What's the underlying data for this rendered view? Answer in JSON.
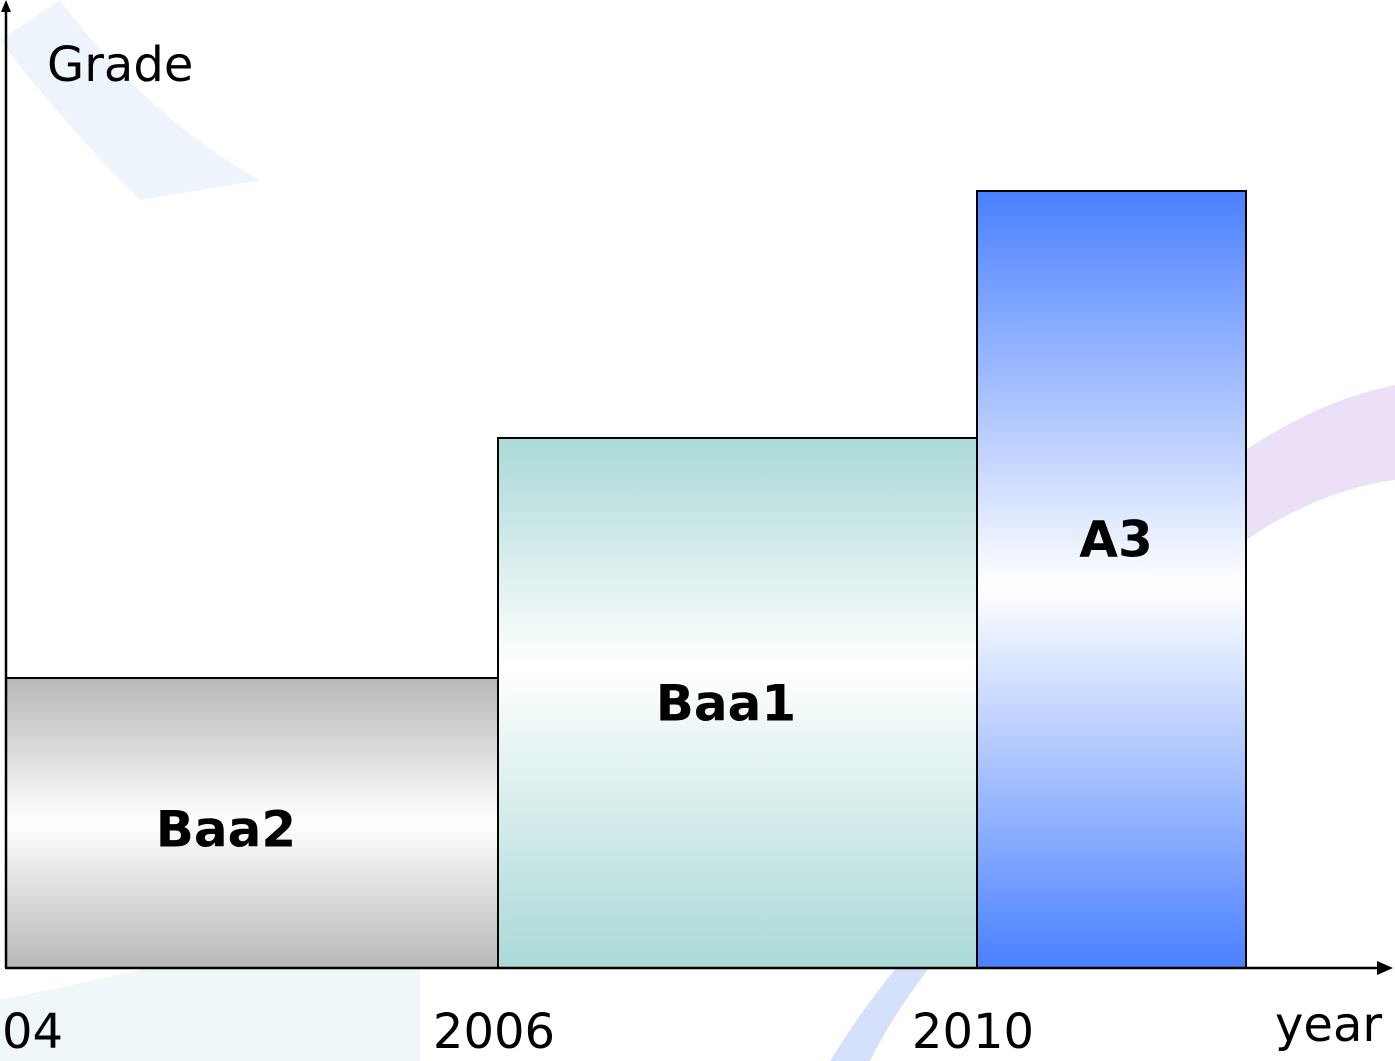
{
  "axis": {
    "y_label": "Grade",
    "x_label": "year",
    "x_ticks": [
      "04",
      "2006",
      "2010"
    ]
  },
  "bars": [
    {
      "label": "Baa2"
    },
    {
      "label": "Baa1"
    },
    {
      "label": "A3"
    }
  ]
}
